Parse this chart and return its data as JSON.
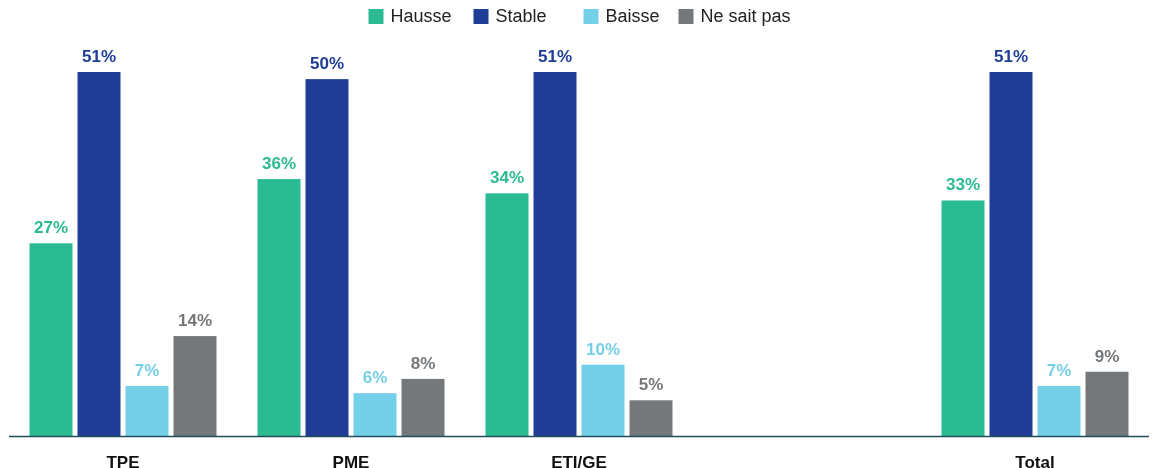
{
  "chart_data": {
    "type": "bar",
    "categories": [
      "TPE",
      "PME",
      "ETI/GE",
      null,
      "Total"
    ],
    "series": [
      {
        "name": "Hausse",
        "color": "#2bbb92",
        "values": [
          27,
          36,
          34,
          null,
          33
        ],
        "value_labels": [
          "27%",
          "36%",
          "34%",
          null,
          "33%"
        ]
      },
      {
        "name": "Stable",
        "color": "#1f3c96",
        "values": [
          51,
          50,
          51,
          null,
          51
        ],
        "value_labels": [
          "51%",
          "50%",
          "51%",
          null,
          "51%"
        ]
      },
      {
        "name": "Baisse",
        "color": "#74cfe8",
        "values": [
          7,
          6,
          10,
          null,
          7
        ],
        "value_labels": [
          "7%",
          "6%",
          "10%",
          null,
          "7%"
        ]
      },
      {
        "name": "Ne sait pas",
        "color": "#75787b",
        "values": [
          14,
          8,
          5,
          null,
          9
        ],
        "value_labels": [
          "14%",
          "8%",
          "5%",
          null,
          "9%"
        ]
      }
    ],
    "legend": "top",
    "grid": false
  }
}
